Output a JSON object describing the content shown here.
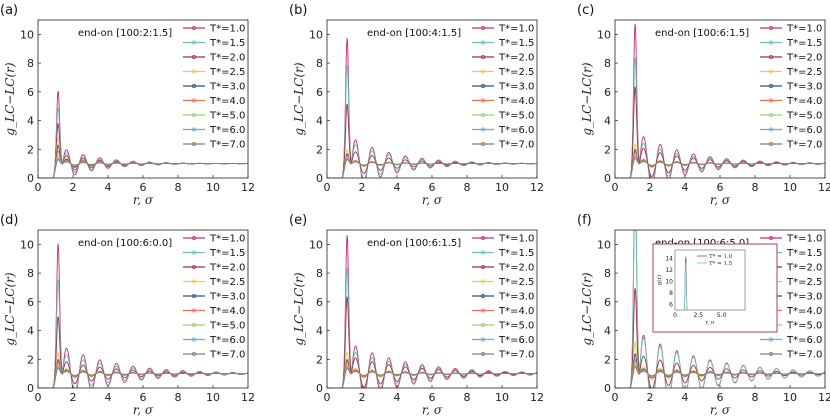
{
  "figure": {
    "series_colors": [
      "#c0307a",
      "#6ac4b8",
      "#9e2f52",
      "#f2c94c",
      "#2f4f80",
      "#e8735a",
      "#9ad07a",
      "#6aaad6",
      "#8a7a6a"
    ],
    "xlabel": "r, σ",
    "ylabel": "g_LC−LC(r)"
  },
  "chart_data": [
    {
      "type": "line",
      "panel_label": "(a)",
      "annotation": "end-on [100:2:1.5]",
      "xlim": [
        0,
        12
      ],
      "ylim": [
        0,
        11
      ],
      "xticks": [
        0,
        2,
        4,
        6,
        8,
        10,
        12
      ],
      "yticks": [
        0,
        2,
        4,
        6,
        8,
        10
      ],
      "xlabel": "r, σ",
      "ylabel": "g_LC−LC(r)",
      "legend_position": "top-right",
      "peaks": [
        6.1,
        4.9,
        3.8,
        2.8,
        2.3,
        1.9,
        1.6,
        1.4,
        1.3
      ],
      "series": [
        {
          "name": "T*=1.0"
        },
        {
          "name": "T*=1.5"
        },
        {
          "name": "T*=2.0"
        },
        {
          "name": "T*=2.5"
        },
        {
          "name": "T*=3.0"
        },
        {
          "name": "T*=4.0"
        },
        {
          "name": "T*=5.0"
        },
        {
          "name": "T*=6.0"
        },
        {
          "name": "T*=7.0"
        }
      ]
    },
    {
      "type": "line",
      "panel_label": "(b)",
      "annotation": "end-on [100:4:1.5]",
      "xlim": [
        0,
        12
      ],
      "ylim": [
        0,
        11
      ],
      "xticks": [
        0,
        2,
        4,
        6,
        8,
        10,
        12
      ],
      "yticks": [
        0,
        2,
        4,
        6,
        8,
        10
      ],
      "xlabel": "r, σ",
      "ylabel": "g_LC−LC(r)",
      "legend_position": "top-right",
      "peaks": [
        9.8,
        7.9,
        5.2,
        2.0,
        1.7,
        1.6,
        1.5,
        1.4,
        1.3
      ],
      "series": [
        {
          "name": "T*=1.0"
        },
        {
          "name": "T*=1.5"
        },
        {
          "name": "T*=2.0"
        },
        {
          "name": "T*=2.5"
        },
        {
          "name": "T*=3.0"
        },
        {
          "name": "T*=4.0"
        },
        {
          "name": "T*=5.0"
        },
        {
          "name": "T*=6.0"
        },
        {
          "name": "T*=7.0"
        }
      ]
    },
    {
      "type": "line",
      "panel_label": "(c)",
      "annotation": "end-on [100:6:1.5]",
      "xlim": [
        0,
        12
      ],
      "ylim": [
        0,
        11
      ],
      "xticks": [
        0,
        2,
        4,
        6,
        8,
        10,
        12
      ],
      "yticks": [
        0,
        2,
        4,
        6,
        8,
        10
      ],
      "xlabel": "r, σ",
      "ylabel": "g_LC−LC(r)",
      "legend_position": "top-right",
      "peaks": [
        10.8,
        8.4,
        6.4,
        2.4,
        2.0,
        1.8,
        1.6,
        1.5,
        1.4
      ],
      "series": [
        {
          "name": "T*=1.0"
        },
        {
          "name": "T*=1.5"
        },
        {
          "name": "T*=2.0"
        },
        {
          "name": "T*=2.5"
        },
        {
          "name": "T*=3.0"
        },
        {
          "name": "T*=4.0"
        },
        {
          "name": "T*=5.0"
        },
        {
          "name": "T*=6.0"
        },
        {
          "name": "T*=7.0"
        }
      ]
    },
    {
      "type": "line",
      "panel_label": "(d)",
      "annotation": "end-on [100:6:0.0]",
      "xlim": [
        0,
        12
      ],
      "ylim": [
        0,
        11
      ],
      "xticks": [
        0,
        2,
        4,
        6,
        8,
        10,
        12
      ],
      "yticks": [
        0,
        2,
        4,
        6,
        8,
        10
      ],
      "xlabel": "r, σ",
      "ylabel": "g_LC−LC(r)",
      "legend_position": "top-right",
      "peaks": [
        10.1,
        7.6,
        5.0,
        2.5,
        2.0,
        1.8,
        1.6,
        1.5,
        1.4
      ],
      "series": [
        {
          "name": "T*=1.0"
        },
        {
          "name": "T*=1.5"
        },
        {
          "name": "T*=2.0"
        },
        {
          "name": "T*=2.5"
        },
        {
          "name": "T*=3.0"
        },
        {
          "name": "T*=4.0"
        },
        {
          "name": "T*=5.0"
        },
        {
          "name": "T*=6.0"
        },
        {
          "name": "T*=7.0"
        }
      ]
    },
    {
      "type": "line",
      "panel_label": "(e)",
      "annotation": "end-on [100:6:1.5]",
      "xlim": [
        0,
        12
      ],
      "ylim": [
        0,
        11
      ],
      "xticks": [
        0,
        2,
        4,
        6,
        8,
        10,
        12
      ],
      "yticks": [
        0,
        2,
        4,
        6,
        8,
        10
      ],
      "xlabel": "r, σ",
      "ylabel": "g_LC−LC(r)",
      "legend_position": "top-right",
      "peaks": [
        10.7,
        8.4,
        6.4,
        2.5,
        2.0,
        1.8,
        1.6,
        1.5,
        1.4
      ],
      "series": [
        {
          "name": "T*=1.0"
        },
        {
          "name": "T*=1.5"
        },
        {
          "name": "T*=2.0"
        },
        {
          "name": "T*=2.5"
        },
        {
          "name": "T*=3.0"
        },
        {
          "name": "T*=4.0"
        },
        {
          "name": "T*=5.0"
        },
        {
          "name": "T*=6.0"
        },
        {
          "name": "T*=7.0"
        }
      ]
    },
    {
      "type": "line",
      "panel_label": "(f)",
      "annotation": "end-on [100:6:5.0]",
      "xlim": [
        0,
        12
      ],
      "ylim": [
        0,
        11
      ],
      "xticks": [
        0,
        2,
        4,
        6,
        8,
        10,
        12
      ],
      "yticks": [
        0,
        2,
        4,
        6,
        8,
        10
      ],
      "xlabel": "r, σ",
      "ylabel": "g_LC−LC(r)",
      "legend_position": "top-right",
      "peaks": [
        14.5,
        13.5,
        7.0,
        3.2,
        2.4,
        2.0,
        1.8,
        1.6,
        1.5
      ],
      "series": [
        {
          "name": "T*=1.0"
        },
        {
          "name": "T*=1.5"
        },
        {
          "name": "T*=2.0"
        },
        {
          "name": "T*=2.5"
        },
        {
          "name": "T*=3.0"
        },
        {
          "name": "T*=4.0"
        },
        {
          "name": "T*=5.0"
        },
        {
          "name": "T*=6.0"
        },
        {
          "name": "T*=7.0"
        }
      ],
      "inset": {
        "xlabel": "r, σ",
        "ylabel": "g(r)",
        "xlim": [
          0,
          7.5
        ],
        "ylim": [
          5,
          15.5
        ],
        "xticks": [
          0,
          2.5,
          5.0
        ],
        "xtick_labels": [
          "0",
          "2.5",
          "5.0"
        ],
        "yticks": [
          6,
          8,
          10,
          12,
          14
        ],
        "series": [
          {
            "name": "T* = 1.0",
            "peak": 14.5
          },
          {
            "name": "T* = 1.5",
            "peak": 13.5
          }
        ]
      }
    }
  ]
}
